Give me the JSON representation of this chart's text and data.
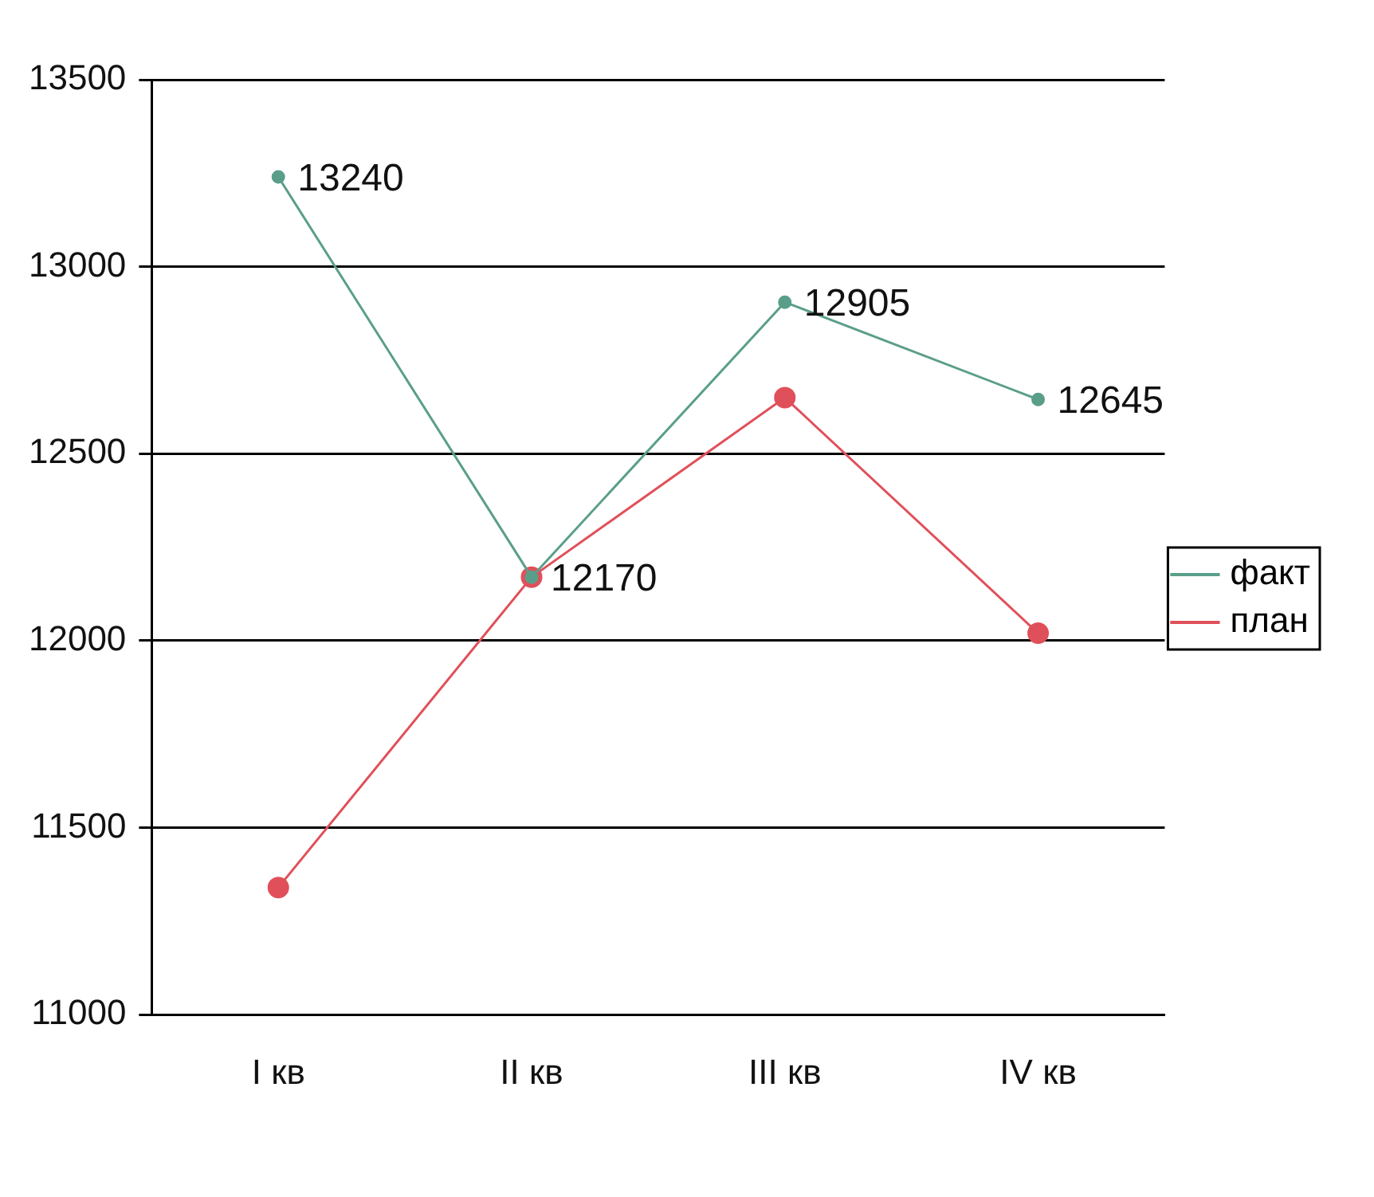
{
  "chart_data": {
    "type": "line",
    "categories": [
      "I кв",
      "II кв",
      "III кв",
      "IV кв"
    ],
    "series": [
      {
        "name": "факт",
        "color": "#5a9e8a",
        "values": [
          13240,
          12170,
          12905,
          12645
        ],
        "value_labels": [
          "13240",
          "12170",
          "12905",
          "12645"
        ]
      },
      {
        "name": "план",
        "color": "#e0505a",
        "values": [
          11340,
          12170,
          12650,
          12020
        ]
      }
    ],
    "ylim": [
      11000,
      13500
    ],
    "yticks": [
      11000,
      11500,
      12000,
      12500,
      13000,
      13500
    ],
    "grid": "y",
    "legend": "right",
    "marker": "circle",
    "line_style": "solid"
  }
}
